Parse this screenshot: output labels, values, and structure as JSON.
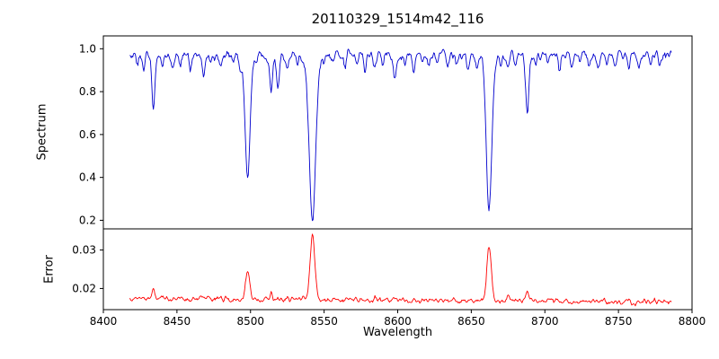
{
  "chart_data": [
    {
      "type": "line",
      "name": "spectrum",
      "title": "20110329_1514m42_116",
      "ylabel": "Spectrum",
      "color": "#0000cd",
      "xlim": [
        8400,
        8800
      ],
      "ylim": [
        0.16,
        1.06
      ],
      "yticks": [
        0.2,
        0.4,
        0.6,
        0.8,
        1.0
      ],
      "ytick_labels": [
        "0.2",
        "0.4",
        "0.6",
        "0.8",
        "1.0"
      ],
      "x_start": 8418,
      "x_end": 8786,
      "step": 0.5,
      "continuum": 0.97,
      "noise": 0.035,
      "lines": [
        {
          "c": 8423,
          "d": 0.05,
          "w": 0.8
        },
        {
          "c": 8427.5,
          "d": 0.07,
          "w": 0.8
        },
        {
          "c": 8434,
          "d": 0.27,
          "w": 1.0
        },
        {
          "c": 8440,
          "d": 0.05,
          "w": 0.8
        },
        {
          "c": 8447,
          "d": 0.07,
          "w": 0.8
        },
        {
          "c": 8452,
          "d": 0.04,
          "w": 0.8
        },
        {
          "c": 8459,
          "d": 0.08,
          "w": 0.8
        },
        {
          "c": 8468,
          "d": 0.1,
          "w": 0.9
        },
        {
          "c": 8473,
          "d": 0.04,
          "w": 0.8
        },
        {
          "c": 8480,
          "d": 0.06,
          "w": 0.8
        },
        {
          "c": 8488,
          "d": 0.04,
          "w": 0.8
        },
        {
          "c": 8493,
          "d": 0.05,
          "w": 0.8
        },
        {
          "c": 8498,
          "d": 0.57,
          "w": 1.7
        },
        {
          "c": 8504,
          "d": 0.04,
          "w": 0.8
        },
        {
          "c": 8514,
          "d": 0.16,
          "w": 0.9
        },
        {
          "c": 8518.5,
          "d": 0.15,
          "w": 0.9
        },
        {
          "c": 8525,
          "d": 0.05,
          "w": 0.8
        },
        {
          "c": 8532,
          "d": 0.04,
          "w": 0.8
        },
        {
          "c": 8542.1,
          "d": 0.76,
          "w": 2.2
        },
        {
          "c": 8550,
          "d": 0.04,
          "w": 0.8
        },
        {
          "c": 8556,
          "d": 0.05,
          "w": 0.8
        },
        {
          "c": 8564,
          "d": 0.06,
          "w": 0.8
        },
        {
          "c": 8572,
          "d": 0.04,
          "w": 0.8
        },
        {
          "c": 8578,
          "d": 0.07,
          "w": 0.8
        },
        {
          "c": 8584,
          "d": 0.05,
          "w": 0.8
        },
        {
          "c": 8590,
          "d": 0.04,
          "w": 0.8
        },
        {
          "c": 8598,
          "d": 0.11,
          "w": 0.9
        },
        {
          "c": 8605,
          "d": 0.05,
          "w": 0.8
        },
        {
          "c": 8611,
          "d": 0.07,
          "w": 0.8
        },
        {
          "c": 8617,
          "d": 0.04,
          "w": 0.8
        },
        {
          "c": 8621,
          "d": 0.06,
          "w": 0.8
        },
        {
          "c": 8627,
          "d": 0.04,
          "w": 0.8
        },
        {
          "c": 8634,
          "d": 0.06,
          "w": 0.8
        },
        {
          "c": 8640,
          "d": 0.04,
          "w": 0.8
        },
        {
          "c": 8648,
          "d": 0.07,
          "w": 0.8
        },
        {
          "c": 8654,
          "d": 0.05,
          "w": 0.8
        },
        {
          "c": 8662.1,
          "d": 0.71,
          "w": 1.9
        },
        {
          "c": 8670,
          "d": 0.05,
          "w": 0.8
        },
        {
          "c": 8675,
          "d": 0.08,
          "w": 0.9
        },
        {
          "c": 8680,
          "d": 0.05,
          "w": 0.8
        },
        {
          "c": 8688,
          "d": 0.26,
          "w": 1.1
        },
        {
          "c": 8694,
          "d": 0.05,
          "w": 0.8
        },
        {
          "c": 8702,
          "d": 0.04,
          "w": 0.8
        },
        {
          "c": 8710,
          "d": 0.07,
          "w": 0.8
        },
        {
          "c": 8718,
          "d": 0.05,
          "w": 0.8
        },
        {
          "c": 8724,
          "d": 0.04,
          "w": 0.8
        },
        {
          "c": 8730,
          "d": 0.06,
          "w": 0.8
        },
        {
          "c": 8736,
          "d": 0.05,
          "w": 0.8
        },
        {
          "c": 8742,
          "d": 0.04,
          "w": 0.8
        },
        {
          "c": 8748,
          "d": 0.05,
          "w": 0.8
        },
        {
          "c": 8757,
          "d": 0.07,
          "w": 0.8
        },
        {
          "c": 8764,
          "d": 0.05,
          "w": 0.8
        },
        {
          "c": 8772,
          "d": 0.06,
          "w": 0.8
        },
        {
          "c": 8778,
          "d": 0.04,
          "w": 0.8
        }
      ]
    },
    {
      "type": "line",
      "name": "error",
      "xlabel": "Wavelength",
      "ylabel": "Error",
      "color": "#ff0000",
      "xlim": [
        8400,
        8800
      ],
      "ylim": [
        0.0145,
        0.0355
      ],
      "yticks": [
        0.02,
        0.03
      ],
      "ytick_labels": [
        "0.02",
        "0.03"
      ],
      "xticks": [
        8400,
        8450,
        8500,
        8550,
        8600,
        8650,
        8700,
        8750,
        8800
      ],
      "xtick_labels": [
        "8400",
        "8450",
        "8500",
        "8550",
        "8600",
        "8650",
        "8700",
        "8750",
        "8800"
      ],
      "x_start": 8418,
      "x_end": 8786,
      "step": 0.5,
      "baseline_start": 0.0174,
      "baseline_end": 0.0165,
      "noise": 0.0012,
      "peaks": [
        {
          "c": 8434,
          "h": 0.0022,
          "w": 1.0
        },
        {
          "c": 8468,
          "h": 0.0008,
          "w": 0.9
        },
        {
          "c": 8498,
          "h": 0.0068,
          "w": 1.4
        },
        {
          "c": 8514,
          "h": 0.0013,
          "w": 0.9
        },
        {
          "c": 8518.5,
          "h": 0.0011,
          "w": 0.9
        },
        {
          "c": 8542.1,
          "h": 0.017,
          "w": 1.6
        },
        {
          "c": 8598,
          "h": 0.0008,
          "w": 0.9
        },
        {
          "c": 8662.1,
          "h": 0.014,
          "w": 1.5
        },
        {
          "c": 8675,
          "h": 0.0012,
          "w": 0.9
        },
        {
          "c": 8688,
          "h": 0.0026,
          "w": 1.0
        },
        {
          "c": 8757,
          "h": 0.0008,
          "w": 0.9
        }
      ]
    }
  ]
}
